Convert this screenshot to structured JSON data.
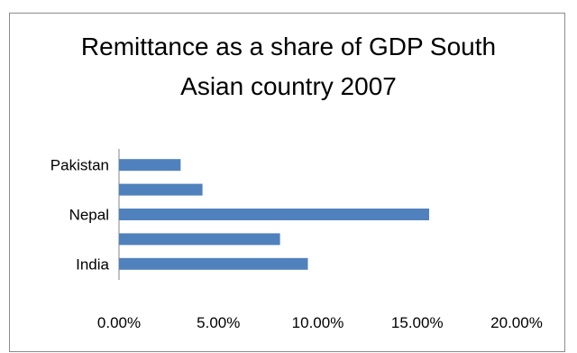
{
  "chart_data": {
    "type": "bar",
    "orientation": "horizontal",
    "title": "Remittance as a share of GDP South Asian country 2007",
    "title_lines": [
      "Remittance as a share of GDP South",
      "Asian country 2007"
    ],
    "categories": [
      "India",
      "",
      "Nepal",
      "",
      "Pakistan"
    ],
    "category_labels_shown": [
      "India",
      "Nepal",
      "Pakistan"
    ],
    "values": [
      0.095,
      0.081,
      0.156,
      0.042,
      0.031
    ],
    "xlim": [
      0,
      0.2
    ],
    "x_ticks": [
      0,
      0.05,
      0.1,
      0.15,
      0.2
    ],
    "x_tick_labels": [
      "0.00%",
      "5.00%",
      "10.00%",
      "15.00%",
      "20.00%"
    ],
    "bar_color": "#4f81bd",
    "grid": false,
    "legend": "none"
  }
}
